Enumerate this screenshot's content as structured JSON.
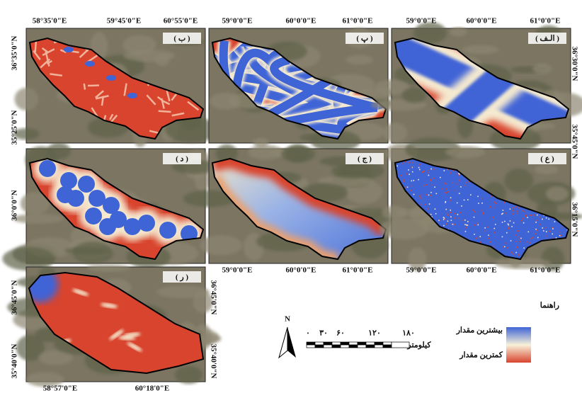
{
  "panels": [
    {
      "label": "( ب )"
    },
    {
      "label": "( پ )"
    },
    {
      "label": "( الـف )"
    },
    {
      "label": "( د )"
    },
    {
      "label": "( ج )"
    },
    {
      "label": "( ع )"
    },
    {
      "label": "( ر )"
    }
  ],
  "axes": {
    "top_row": [
      "58°35'0\"E",
      "59°45'0\"E",
      "60°55'0\"E",
      "59°0'0\"E",
      "60°0'0\"E",
      "61°0'0\"E",
      "59°0'0\"E",
      "60°0'0\"E",
      "61°0'0\"E"
    ],
    "middle_row": [
      "59°0'0\"E",
      "60°0'0\"E",
      "61°0'0\"E",
      "59°0'0\"E",
      "60°0'0\"E",
      "61°0'0\"E"
    ],
    "bottom_row": [
      "58°57'0\"E",
      "60°18'0\"E"
    ],
    "left": [
      "36°35'0\"N",
      "35°25'0\"N",
      "36°0'0\"N",
      "36°45'0\"N",
      "35°40'0\"N"
    ],
    "right": [
      "36°30'0\"N",
      "35°45'0\"N",
      "36°15'0\"N",
      "36°45'0\"N",
      "35°40'0\"N"
    ]
  },
  "legend": {
    "title": "راهنما",
    "high": "بیشترین مقدار",
    "low": "کمترین مقدار"
  },
  "scale_bar": {
    "north": "N",
    "ticks": [
      "۰",
      "۳۰",
      "۶۰",
      "۱۲۰",
      "۱۸۰"
    ],
    "unit": "کیلومتر"
  }
}
